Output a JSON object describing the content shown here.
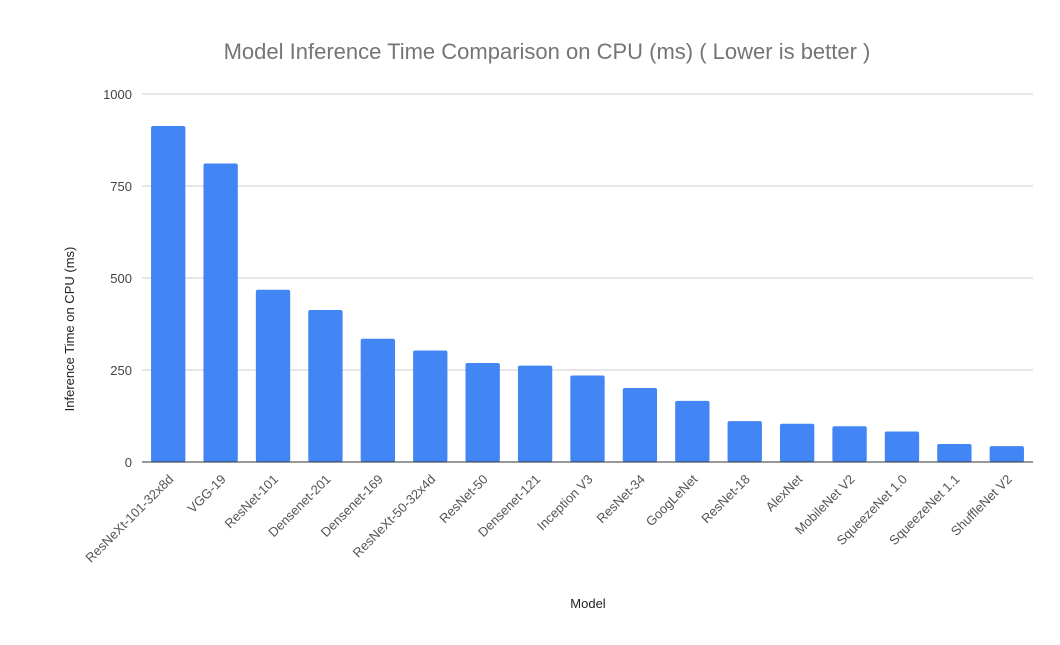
{
  "chart_data": {
    "type": "bar",
    "title": "Model Inference Time Comparison on CPU (ms) ( Lower is better )",
    "xlabel": "Model",
    "ylabel": "Inference Time on CPU (ms)",
    "ylim": [
      0,
      1000
    ],
    "yticks": [
      0,
      250,
      500,
      750,
      1000
    ],
    "grid": true,
    "legend": "none",
    "bar_color": "#4285f4",
    "categories": [
      "ResNeXt-101-32x8d",
      "VGG-19",
      "ResNet-101",
      "Densenet-201",
      "Densenet-169",
      "ResNeXt-50-32x4d",
      "ResNet-50",
      "Densenet-121",
      "Inception V3",
      "ResNet-34",
      "GoogLeNet",
      "ResNet-18",
      "AlexNet",
      "MobileNet V2",
      "SqueezeNet 1.0",
      "SqueezeNet 1.1",
      "ShuffleNet V2"
    ],
    "values": [
      913,
      811,
      468,
      413,
      335,
      303,
      269,
      262,
      235,
      201,
      166,
      111,
      104,
      97,
      83,
      49,
      43
    ]
  }
}
